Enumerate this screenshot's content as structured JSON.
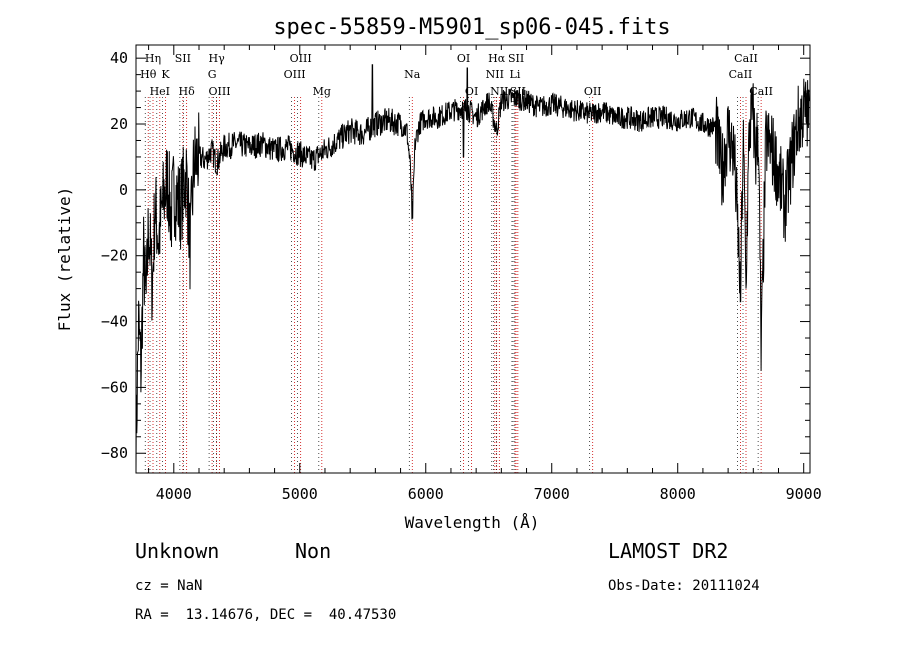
{
  "chart_data": {
    "type": "line",
    "title": "spec-55859-M5901_sp06-045.fits",
    "xlabel": "Wavelength (Å)",
    "ylabel": "Flux (relative)",
    "xlim": [
      3700,
      9050
    ],
    "ylim": [
      -86,
      44
    ],
    "xticks": [
      4000,
      5000,
      6000,
      7000,
      8000,
      9000
    ],
    "yticks": [
      -80,
      -60,
      -40,
      -20,
      0,
      20,
      40
    ],
    "spectrum_anchors": [
      [
        3700,
        -80
      ],
      [
        3720,
        -40
      ],
      [
        3740,
        -55
      ],
      [
        3760,
        -20
      ],
      [
        3780,
        -35
      ],
      [
        3800,
        -10
      ],
      [
        3830,
        -30
      ],
      [
        3850,
        -5
      ],
      [
        3880,
        -15
      ],
      [
        3910,
        -5
      ],
      [
        3950,
        3
      ],
      [
        3980,
        -8
      ],
      [
        4000,
        0
      ],
      [
        4050,
        -5
      ],
      [
        4100,
        5
      ],
      [
        4130,
        -18
      ],
      [
        4160,
        8
      ],
      [
        4200,
        10
      ],
      [
        4250,
        9
      ],
      [
        4300,
        12
      ],
      [
        4340,
        8
      ],
      [
        4400,
        13
      ],
      [
        4500,
        14
      ],
      [
        4600,
        13
      ],
      [
        4700,
        14
      ],
      [
        4800,
        12
      ],
      [
        4900,
        13
      ],
      [
        5000,
        11
      ],
      [
        5100,
        9
      ],
      [
        5200,
        12
      ],
      [
        5300,
        15
      ],
      [
        5400,
        18
      ],
      [
        5500,
        17
      ],
      [
        5600,
        20
      ],
      [
        5700,
        21
      ],
      [
        5800,
        20
      ],
      [
        5850,
        18
      ],
      [
        5875,
        8
      ],
      [
        5895,
        -8
      ],
      [
        5915,
        14
      ],
      [
        5950,
        20
      ],
      [
        6000,
        22
      ],
      [
        6100,
        22
      ],
      [
        6200,
        24
      ],
      [
        6300,
        25
      ],
      [
        6350,
        24
      ],
      [
        6400,
        22
      ],
      [
        6500,
        27
      ],
      [
        6563,
        18
      ],
      [
        6600,
        27
      ],
      [
        6700,
        28
      ],
      [
        6800,
        27
      ],
      [
        6900,
        25
      ],
      [
        7000,
        26
      ],
      [
        7100,
        25
      ],
      [
        7200,
        24
      ],
      [
        7300,
        23
      ],
      [
        7400,
        24
      ],
      [
        7500,
        22
      ],
      [
        7600,
        22
      ],
      [
        7700,
        21
      ],
      [
        7800,
        22
      ],
      [
        7900,
        22
      ],
      [
        8000,
        21
      ],
      [
        8100,
        22
      ],
      [
        8200,
        20
      ],
      [
        8300,
        19
      ],
      [
        8350,
        5
      ],
      [
        8400,
        18
      ],
      [
        8450,
        10
      ],
      [
        8498,
        -30
      ],
      [
        8520,
        15
      ],
      [
        8542,
        -25
      ],
      [
        8570,
        20
      ],
      [
        8600,
        22
      ],
      [
        8620,
        10
      ],
      [
        8640,
        20
      ],
      [
        8662,
        -50
      ],
      [
        8700,
        15
      ],
      [
        8750,
        12
      ],
      [
        8800,
        5
      ],
      [
        8850,
        -5
      ],
      [
        8900,
        8
      ],
      [
        8950,
        20
      ],
      [
        9000,
        24
      ],
      [
        9050,
        22
      ]
    ],
    "features": [
      {
        "w": 5577,
        "f": 38
      },
      {
        "w": 5890,
        "f": -9
      },
      {
        "w": 6300,
        "f": 10
      },
      {
        "w": 6330,
        "f": 37
      },
      {
        "w": 8498,
        "f": -34
      },
      {
        "w": 8542,
        "f": -30
      },
      {
        "w": 8662,
        "f": -55
      }
    ],
    "lines": [
      {
        "name": "Hη",
        "w": 3835,
        "row": 0
      },
      {
        "name": "Hθ",
        "w": 3797,
        "row": 1
      },
      {
        "name": "HeI",
        "w": 3889,
        "row": 2
      },
      {
        "name": "SII",
        "w": 4072,
        "row": 0
      },
      {
        "name": "K",
        "w": 3934,
        "row": 1
      },
      {
        "name": "Hδ",
        "w": 4102,
        "row": 2
      },
      {
        "name": "Hγ",
        "w": 4340,
        "row": 0
      },
      {
        "name": "G",
        "w": 4304,
        "row": 1
      },
      {
        "name": "OIII",
        "w": 4363,
        "row": 2
      },
      {
        "name": "OIII",
        "w": 5007,
        "row": 0
      },
      {
        "name": "OIII",
        "w": 4959,
        "row": 1
      },
      {
        "name": "Mg",
        "w": 5175,
        "row": 2
      },
      {
        "name": "Na",
        "w": 5893,
        "row": 1
      },
      {
        "name": "OI",
        "w": 6300,
        "row": 0
      },
      {
        "name": "OI",
        "w": 6364,
        "row": 2
      },
      {
        "name": "Hα",
        "w": 6563,
        "row": 0
      },
      {
        "name": "SII",
        "w": 6717,
        "row": 0
      },
      {
        "name": "NII",
        "w": 6548,
        "row": 1
      },
      {
        "name": "Li",
        "w": 6708,
        "row": 1
      },
      {
        "name": "NII",
        "w": 6584,
        "row": 2
      },
      {
        "name": "SII",
        "w": 6731,
        "row": 2
      },
      {
        "name": "OII",
        "w": 7325,
        "row": 2
      },
      {
        "name": "CaII",
        "w": 8542,
        "row": 0
      },
      {
        "name": "CaII",
        "w": 8498,
        "row": 1
      },
      {
        "name": "CaII",
        "w": 8662,
        "row": 2
      }
    ],
    "grid": false,
    "line_colors": {
      "spectrum": "#000000",
      "marker": "#cc0000",
      "guide": "#000000"
    }
  },
  "info": {
    "class_label": "Unknown",
    "subclass_label": "Non",
    "cz_text": "cz = NaN",
    "coords_text": "RA =  13.14676, DEC =  40.47530",
    "survey": "LAMOST DR2",
    "obs_date_text": "Obs-Date: 20111024"
  }
}
